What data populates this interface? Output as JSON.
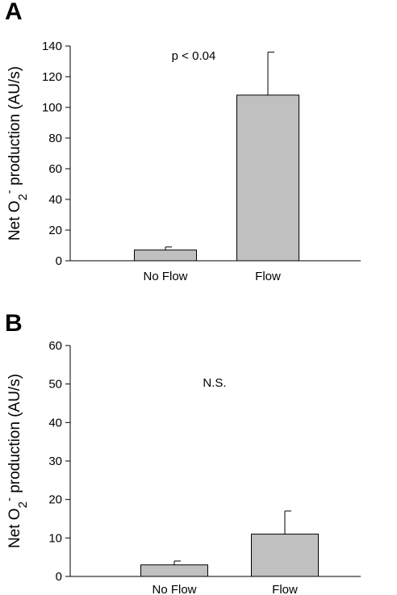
{
  "colors": {
    "bar_fill": "#c0c0c0",
    "axis": "#000000",
    "background": "#ffffff"
  },
  "chart_data": [
    {
      "panel_label": "A",
      "type": "bar",
      "categories": [
        "No Flow",
        "Flow"
      ],
      "values": [
        7,
        108
      ],
      "error_upper": [
        9,
        136
      ],
      "ylim": [
        0,
        140
      ],
      "yticks": [
        0,
        20,
        40,
        60,
        80,
        100,
        120,
        140
      ],
      "ylabel_main": "Net O",
      "ylabel_sub": "2",
      "ylabel_sup": "-",
      "ylabel_rest": " production (AU/s)",
      "annotation": "p < 0.04",
      "grid": false
    },
    {
      "panel_label": "B",
      "type": "bar",
      "categories": [
        "No Flow",
        "Flow"
      ],
      "values": [
        3,
        11
      ],
      "error_upper": [
        4,
        17
      ],
      "ylim": [
        0,
        60
      ],
      "yticks": [
        0,
        10,
        20,
        30,
        40,
        50,
        60
      ],
      "ylabel_main": "Net O",
      "ylabel_sub": "2",
      "ylabel_sup": "-",
      "ylabel_rest": " production (AU/s)",
      "annotation": "N.S.",
      "grid": false
    }
  ]
}
